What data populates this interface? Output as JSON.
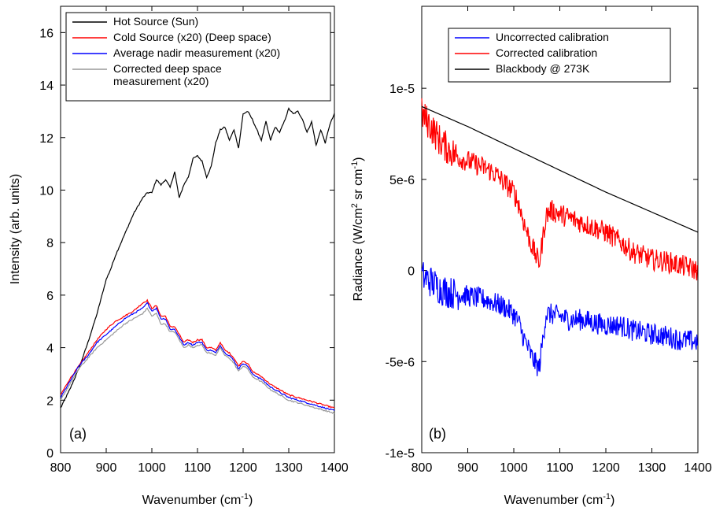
{
  "chart_data": [
    {
      "type": "line",
      "panel_label": "(a)",
      "xlabel": "Wavenumber (cm",
      "xlabel_sup": "-1",
      "xlabel_end": ")",
      "ylabel": "Intensity (arb. units)",
      "xlim": [
        800,
        1400
      ],
      "ylim": [
        0,
        17
      ],
      "xticks": [
        "800",
        "900",
        "1000",
        "1100",
        "1200",
        "1300",
        "1400"
      ],
      "yticks": [
        "0",
        "2",
        "4",
        "6",
        "8",
        "10",
        "12",
        "14",
        "16"
      ],
      "legend_position": "top",
      "series": [
        {
          "name": "Hot Source (Sun)",
          "color": "#000000",
          "x": [
            800,
            820,
            840,
            860,
            880,
            900,
            910,
            920,
            940,
            960,
            980,
            990,
            1000,
            1010,
            1020,
            1030,
            1040,
            1050,
            1060,
            1070,
            1080,
            1090,
            1100,
            1110,
            1120,
            1130,
            1140,
            1150,
            1160,
            1170,
            1180,
            1190,
            1200,
            1210,
            1220,
            1230,
            1240,
            1250,
            1260,
            1270,
            1280,
            1290,
            1300,
            1310,
            1320,
            1330,
            1340,
            1350,
            1360,
            1370,
            1380,
            1390,
            1400
          ],
          "y": [
            1.7,
            2.4,
            3.2,
            4.2,
            5.3,
            6.6,
            7.0,
            7.5,
            8.3,
            9.1,
            9.7,
            9.9,
            9.9,
            10.4,
            10.2,
            10.4,
            10.1,
            10.7,
            9.7,
            10.2,
            10.5,
            11.2,
            11.3,
            11.1,
            10.5,
            10.9,
            11.8,
            12.3,
            12.4,
            11.9,
            12.3,
            11.6,
            12.9,
            13.0,
            12.7,
            12.3,
            11.9,
            12.6,
            11.9,
            12.4,
            12.2,
            12.6,
            13.1,
            12.9,
            13.0,
            12.7,
            12.2,
            12.6,
            11.7,
            12.3,
            11.8,
            12.5,
            12.9
          ]
        },
        {
          "name": "Cold Source (x20) (Deep space)",
          "color": "#ff0000",
          "x": [
            800,
            820,
            840,
            860,
            880,
            900,
            920,
            940,
            960,
            980,
            990,
            1000,
            1010,
            1020,
            1030,
            1040,
            1050,
            1060,
            1070,
            1080,
            1090,
            1100,
            1110,
            1120,
            1130,
            1140,
            1150,
            1160,
            1170,
            1180,
            1190,
            1200,
            1210,
            1220,
            1230,
            1240,
            1260,
            1280,
            1300,
            1320,
            1340,
            1360,
            1380,
            1400
          ],
          "y": [
            2.2,
            2.8,
            3.3,
            3.8,
            4.3,
            4.7,
            5.0,
            5.2,
            5.4,
            5.7,
            5.8,
            5.5,
            5.6,
            5.2,
            5.2,
            4.8,
            4.8,
            4.5,
            4.2,
            4.3,
            4.2,
            4.3,
            4.3,
            4.0,
            4.0,
            3.9,
            4.2,
            3.9,
            3.8,
            3.6,
            3.3,
            3.5,
            3.4,
            3.1,
            3.0,
            2.9,
            2.6,
            2.4,
            2.2,
            2.1,
            2.0,
            1.9,
            1.8,
            1.7
          ]
        },
        {
          "name": "Average nadir measurement (x20)",
          "color": "#0000ff",
          "x": [
            800,
            820,
            840,
            860,
            880,
            900,
            920,
            940,
            960,
            980,
            990,
            1000,
            1010,
            1020,
            1030,
            1040,
            1050,
            1060,
            1070,
            1080,
            1090,
            1100,
            1110,
            1120,
            1130,
            1140,
            1150,
            1160,
            1170,
            1180,
            1190,
            1200,
            1210,
            1220,
            1230,
            1240,
            1260,
            1280,
            1300,
            1320,
            1340,
            1360,
            1380,
            1400
          ],
          "y": [
            2.1,
            2.7,
            3.3,
            3.7,
            4.2,
            4.5,
            4.8,
            5.1,
            5.3,
            5.5,
            5.7,
            5.4,
            5.5,
            5.1,
            5.1,
            4.7,
            4.7,
            4.4,
            4.1,
            4.2,
            4.1,
            4.2,
            4.2,
            3.9,
            3.9,
            3.8,
            4.1,
            3.8,
            3.7,
            3.5,
            3.2,
            3.4,
            3.3,
            3.0,
            2.9,
            2.8,
            2.5,
            2.3,
            2.1,
            2.0,
            1.9,
            1.8,
            1.7,
            1.6
          ]
        },
        {
          "name": "Corrected deep space measurement (x20)",
          "name_line2": "measurement (x20)",
          "name_line1": "Corrected deep space",
          "color": "#999999",
          "x": [
            800,
            820,
            840,
            860,
            880,
            900,
            920,
            940,
            960,
            980,
            990,
            1000,
            1010,
            1020,
            1030,
            1040,
            1050,
            1060,
            1070,
            1080,
            1090,
            1100,
            1110,
            1120,
            1130,
            1140,
            1150,
            1160,
            1170,
            1180,
            1190,
            1200,
            1210,
            1220,
            1230,
            1240,
            1260,
            1280,
            1300,
            1320,
            1340,
            1360,
            1380,
            1400
          ],
          "y": [
            2.0,
            2.6,
            3.2,
            3.6,
            4.0,
            4.3,
            4.6,
            4.9,
            5.1,
            5.3,
            5.5,
            5.2,
            5.3,
            4.9,
            4.9,
            4.6,
            4.6,
            4.3,
            4.0,
            4.1,
            4.0,
            4.1,
            4.1,
            3.8,
            3.8,
            3.7,
            4.0,
            3.7,
            3.6,
            3.4,
            3.1,
            3.3,
            3.2,
            2.9,
            2.8,
            2.7,
            2.4,
            2.2,
            2.0,
            1.9,
            1.8,
            1.7,
            1.6,
            1.5
          ]
        }
      ]
    },
    {
      "type": "line",
      "panel_label": "(b)",
      "xlabel": "Wavenumber (cm",
      "xlabel_sup": "-1",
      "xlabel_end": ")",
      "ylabel_parts": [
        "Radiance (W/cm",
        "2",
        " sr cm",
        "-1",
        ")"
      ],
      "xlim": [
        800,
        1400
      ],
      "ylim": [
        -1e-05,
        1.45e-05
      ],
      "xticks": [
        "800",
        "900",
        "1000",
        "1100",
        "1200",
        "1300",
        "1400"
      ],
      "yticks": [
        {
          "label": "1e-5",
          "value": 1e-05
        },
        {
          "label": "5e-6",
          "value": 5e-06
        },
        {
          "label": "0",
          "value": 0
        },
        {
          "label": "-5e-6",
          "value": -5e-06
        },
        {
          "label": "-1e-5",
          "value": -1e-05
        }
      ],
      "legend_position": "top-right",
      "series": [
        {
          "name": "Uncorrected calibration",
          "color": "#0000ff",
          "noise": 1.2e-06,
          "x": [
            800,
            820,
            840,
            860,
            880,
            900,
            920,
            940,
            960,
            980,
            1000,
            1010,
            1020,
            1030,
            1040,
            1050,
            1055,
            1060,
            1070,
            1080,
            1100,
            1120,
            1150,
            1180,
            1200,
            1230,
            1260,
            1300,
            1330,
            1360,
            1400
          ],
          "y": [
            -3e-07,
            -6e-07,
            -1e-06,
            -1.2e-06,
            -1.3e-06,
            -1.4e-06,
            -1.5e-06,
            -1.6e-06,
            -1.8e-06,
            -2e-06,
            -2.4e-06,
            -2.8e-06,
            -3.6e-06,
            -4.2e-06,
            -4.8e-06,
            -5.2e-06,
            -5.4e-06,
            -4.4e-06,
            -2.4e-06,
            -2.4e-06,
            -2.5e-06,
            -2.7e-06,
            -2.7e-06,
            -2.9e-06,
            -3e-06,
            -3e-06,
            -3.3e-06,
            -3.5e-06,
            -3.6e-06,
            -3.8e-06,
            -3.9e-06
          ]
        },
        {
          "name": "Corrected calibration",
          "color": "#ff0000",
          "noise": 1.2e-06,
          "x": [
            800,
            820,
            840,
            860,
            880,
            900,
            920,
            940,
            960,
            980,
            1000,
            1010,
            1020,
            1030,
            1040,
            1050,
            1055,
            1060,
            1070,
            1080,
            1100,
            1120,
            1150,
            1180,
            1200,
            1230,
            1260,
            1300,
            1330,
            1360,
            1400
          ],
          "y": [
            8.6e-06,
            7.9e-06,
            7.1e-06,
            6.6e-06,
            6.2e-06,
            6e-06,
            5.8e-06,
            5.6e-06,
            5.3e-06,
            4.8e-06,
            4.3e-06,
            3.7e-06,
            2.8e-06,
            2e-06,
            1.3e-06,
            7e-07,
            4e-07,
            1.2e-06,
            3e-06,
            3.3e-06,
            3.1e-06,
            2.9e-06,
            2.6e-06,
            2.3e-06,
            2.1e-06,
            1.6e-06,
            1e-06,
            6e-07,
            5e-07,
            3e-07,
            0
          ]
        },
        {
          "name": "Blackbody @ 273K",
          "color": "#000000",
          "noise": 0,
          "x": [
            800,
            900,
            1000,
            1100,
            1200,
            1300,
            1400
          ],
          "y": [
            9e-06,
            7.9e-06,
            6.7e-06,
            5.5e-06,
            4.3e-06,
            3.2e-06,
            2.1e-06
          ]
        }
      ]
    }
  ]
}
